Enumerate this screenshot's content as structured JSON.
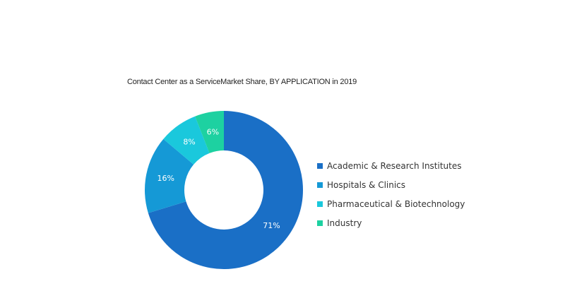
{
  "chart_data": {
    "type": "pie",
    "title": "Contact Center as a ServiceMarket Share, BY APPLICATION in 2019",
    "categories": [
      "Academic & Research Institutes",
      "Hospitals & Clinics",
      "Pharmaceutical & Biotechnology",
      "Industry"
    ],
    "values": [
      71,
      16,
      8,
      6
    ],
    "labels": [
      "71%",
      "16%",
      "8%",
      "6%"
    ],
    "colors": [
      "#1a6fc6",
      "#1599d6",
      "#1ac8dc",
      "#1dd1a1"
    ],
    "donut": true,
    "legend_position": "right"
  }
}
